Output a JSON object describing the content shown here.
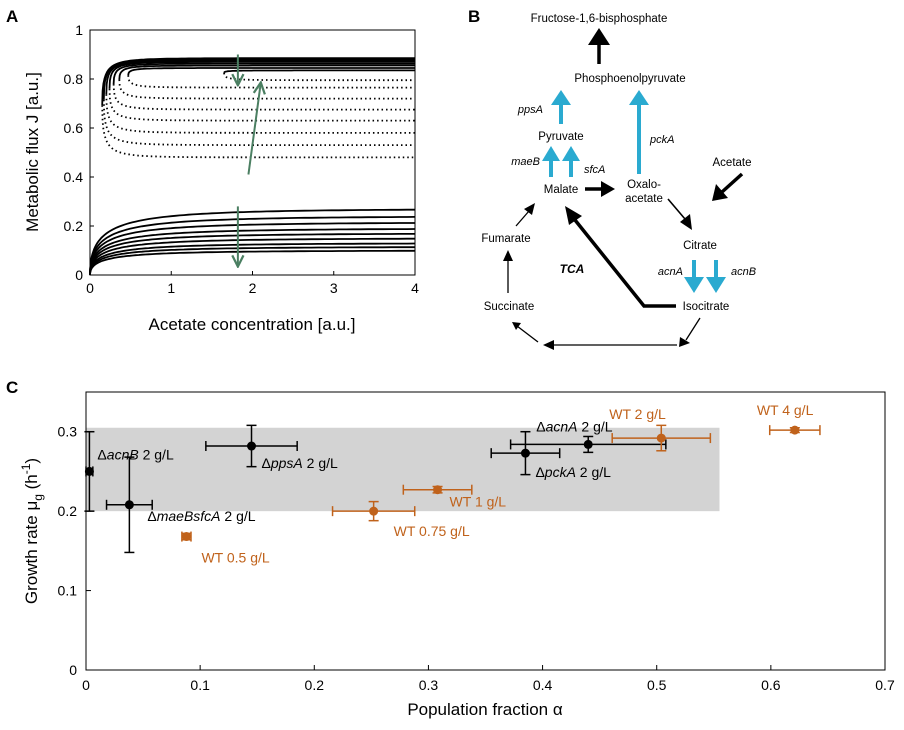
{
  "colors": {
    "black": "#000000",
    "orange": "#C0621B",
    "cyan": "#2AAAD0",
    "green": "#4B7F62",
    "shade": "#D3D3D3"
  },
  "panels": {
    "a": "A",
    "b": "B",
    "c": "C"
  },
  "chart_data": [
    {
      "id": "A",
      "type": "line",
      "xlabel": "Acetate concentration [a.u.]",
      "ylabel": "Metabolic flux J [a.u.]",
      "xlim": [
        0,
        4
      ],
      "ylim": [
        0,
        1
      ],
      "xticks": [
        "0",
        "1",
        "2",
        "3",
        "4"
      ],
      "yticks": [
        "0",
        "0.2",
        "0.4",
        "0.6",
        "0.8",
        "1"
      ],
      "series": [
        {
          "fold_x": 0.15,
          "upper_end": 0.885,
          "lower_end": 0.48
        },
        {
          "fold_x": 0.17,
          "upper_end": 0.88,
          "lower_end": 0.53
        },
        {
          "fold_x": 0.2,
          "upper_end": 0.875,
          "lower_end": 0.58
        },
        {
          "fold_x": 0.24,
          "upper_end": 0.87,
          "lower_end": 0.63
        },
        {
          "fold_x": 0.29,
          "upper_end": 0.863,
          "lower_end": 0.675
        },
        {
          "fold_x": 0.36,
          "upper_end": 0.855,
          "lower_end": 0.72
        },
        {
          "fold_x": 0.47,
          "upper_end": 0.845,
          "lower_end": 0.765
        },
        {
          "fold_x": 1.65,
          "upper_end": 0.835,
          "lower_end": 0.795
        }
      ],
      "low_branch_ends": [
        0.27,
        0.24,
        0.215,
        0.19,
        0.17,
        0.15,
        0.13,
        0.115,
        0.1
      ],
      "arrows": [
        {
          "x1": 1.82,
          "y1": 0.9,
          "x2": 1.82,
          "y2": 0.78
        },
        {
          "x1": 1.95,
          "y1": 0.41,
          "x2": 2.1,
          "y2": 0.78
        },
        {
          "x1": 1.82,
          "y1": 0.28,
          "x2": 1.82,
          "y2": 0.04
        }
      ]
    },
    {
      "id": "C",
      "type": "scatter",
      "xlabel": "Population fraction α",
      "ylabel": "Growth rate μ",
      "ylabel_sub": "g",
      "ylabel_unit": " (h",
      "ylabel_sup": "-1",
      "ylabel_close": ")",
      "xlim": [
        0,
        0.7
      ],
      "ylim": [
        0,
        0.35
      ],
      "xticks": [
        "0",
        "0.1",
        "0.2",
        "0.3",
        "0.4",
        "0.5",
        "0.6",
        "0.7"
      ],
      "yticks": [
        "0",
        "0.1",
        "0.2",
        "0.3"
      ],
      "shaded_region": {
        "x": [
          0,
          0.555
        ],
        "y": [
          0.2,
          0.305
        ]
      },
      "series": [
        {
          "name": "mutants",
          "color": "#000000",
          "points": [
            {
              "x": 0.003,
              "y": 0.25,
              "xerr": 0.003,
              "yerr": 0.05,
              "prefix": "Δ",
              "gene": "acnB",
              "suffix": " 2 g/L"
            },
            {
              "x": 0.038,
              "y": 0.208,
              "xerr": 0.02,
              "yerr": 0.06,
              "prefix": "Δ",
              "gene": "maeBsfcA",
              "suffix": " 2 g/L"
            },
            {
              "x": 0.145,
              "y": 0.282,
              "xerr": 0.04,
              "yerr": 0.026,
              "prefix": "Δ",
              "gene": "ppsA",
              "suffix": " 2 g/L"
            },
            {
              "x": 0.385,
              "y": 0.273,
              "xerr": 0.03,
              "yerr": 0.027,
              "prefix": "Δ",
              "gene": "pckA",
              "suffix": " 2 g/L"
            },
            {
              "x": 0.44,
              "y": 0.284,
              "xerr": 0.068,
              "yerr": 0.01,
              "prefix": "Δ",
              "gene": "acnA",
              "suffix": " 2 g/L"
            }
          ]
        },
        {
          "name": "wild type",
          "color": "#C0621B",
          "points": [
            {
              "x": 0.088,
              "y": 0.168,
              "xerr": 0.004,
              "yerr": 0.004,
              "label": "WT 0.5 g/L"
            },
            {
              "x": 0.252,
              "y": 0.2,
              "xerr": 0.036,
              "yerr": 0.012,
              "label": "WT 0.75 g/L"
            },
            {
              "x": 0.308,
              "y": 0.227,
              "xerr": 0.03,
              "yerr": 0.004,
              "label": "WT 1 g/L"
            },
            {
              "x": 0.504,
              "y": 0.292,
              "xerr": 0.043,
              "yerr": 0.016,
              "label": "WT 2 g/L"
            },
            {
              "x": 0.621,
              "y": 0.302,
              "xerr": 0.022,
              "yerr": 0.003,
              "label": "WT 4 g/L"
            }
          ]
        }
      ]
    }
  ],
  "network": {
    "nodes": {
      "fbp": "Fructose-1,6-bisphosphate",
      "pep": "Phosphoenolpyruvate",
      "pyruvate": "Pyruvate",
      "malate": "Malate",
      "oxalo1": "Oxalo-",
      "oxalo2": "acetate",
      "acetate": "Acetate",
      "citrate": "Citrate",
      "isocitrate": "Isocitrate",
      "fumarate": "Fumarate",
      "succinate": "Succinate"
    },
    "enzymes": {
      "ppsA": "ppsA",
      "pckA": "pckA",
      "maeB": "maeB",
      "sfcA": "sfcA",
      "acnA": "acnA",
      "acnB": "acnB"
    },
    "tca": "TCA"
  }
}
